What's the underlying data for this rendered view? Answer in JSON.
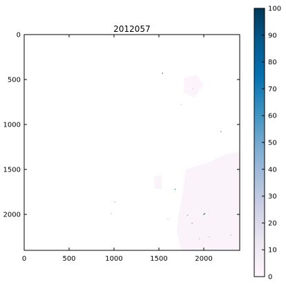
{
  "chart_data": {
    "type": "heatmap",
    "title": "2012057",
    "xlabel": "",
    "ylabel": "",
    "xlim": [
      0,
      2400
    ],
    "ylim": [
      2400,
      0
    ],
    "x_ticks": [
      0,
      500,
      1000,
      1500,
      2000
    ],
    "y_ticks": [
      0,
      500,
      1000,
      1500,
      2000
    ],
    "grid": false,
    "colorbar": {
      "colormap": "PuBu",
      "range": [
        0,
        100
      ],
      "ticks": [
        0,
        10,
        20,
        30,
        40,
        50,
        60,
        70,
        80,
        90,
        100
      ],
      "stops": [
        "#fff7fb",
        "#ece7f2",
        "#d0d1e6",
        "#a6bddb",
        "#74a9cf",
        "#3690c0",
        "#0570b0",
        "#045a8d",
        "#023858"
      ]
    },
    "low_value_regions": [
      {
        "value": 3,
        "points": [
          [
            1800,
            1500
          ],
          [
            2050,
            1420
          ],
          [
            2250,
            1330
          ],
          [
            2400,
            1300
          ],
          [
            2400,
            2400
          ],
          [
            1750,
            2400
          ],
          [
            1700,
            2200
          ],
          [
            1720,
            2000
          ],
          [
            1760,
            1800
          ]
        ]
      },
      {
        "value": 3,
        "points": [
          [
            1450,
            1580
          ],
          [
            1530,
            1560
          ],
          [
            1530,
            1720
          ],
          [
            1450,
            1710
          ]
        ]
      },
      {
        "value": 2,
        "points": [
          [
            1780,
            480
          ],
          [
            1920,
            450
          ],
          [
            2000,
            560
          ],
          [
            1900,
            700
          ],
          [
            1780,
            650
          ]
        ]
      }
    ],
    "point_values": [
      {
        "x": 1540,
        "y": 430,
        "value": 85
      },
      {
        "x": 2190,
        "y": 1080,
        "value": 60
      },
      {
        "x": 1680,
        "y": 1720,
        "value": 70
      },
      {
        "x": 2000,
        "y": 2000,
        "value": 95
      },
      {
        "x": 2010,
        "y": 1990,
        "value": 90
      },
      {
        "x": 1010,
        "y": 1860,
        "value": 45
      },
      {
        "x": 970,
        "y": 1990,
        "value": 40
      },
      {
        "x": 1870,
        "y": 2100,
        "value": 55
      },
      {
        "x": 1820,
        "y": 2010,
        "value": 50
      },
      {
        "x": 2300,
        "y": 2230,
        "value": 45
      },
      {
        "x": 1950,
        "y": 2270,
        "value": 40
      },
      {
        "x": 1880,
        "y": 600,
        "value": 30
      },
      {
        "x": 1750,
        "y": 780,
        "value": 25
      },
      {
        "x": 2060,
        "y": 2250,
        "value": 35
      },
      {
        "x": 1600,
        "y": 2050,
        "value": 30
      }
    ]
  }
}
